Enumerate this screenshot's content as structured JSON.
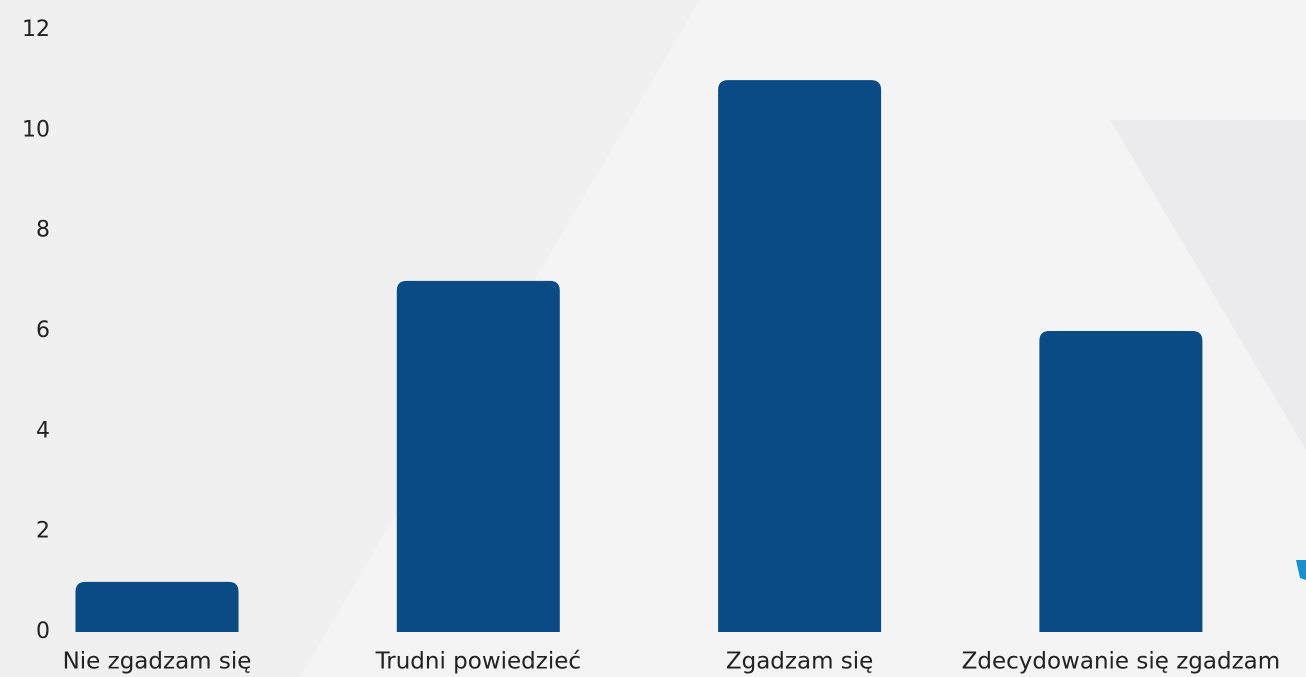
{
  "chart_data": {
    "type": "bar",
    "categories": [
      "Nie zgadzam się",
      "Trudni powiedzieć",
      "Zgadzam się",
      "Zdecydowanie się zgadzam"
    ],
    "values": [
      1,
      7,
      11,
      6
    ],
    "color": "#0a4a85",
    "ylim": [
      0,
      12
    ],
    "yticks": [
      0,
      2,
      4,
      6,
      8,
      10,
      12
    ],
    "grid": false
  }
}
